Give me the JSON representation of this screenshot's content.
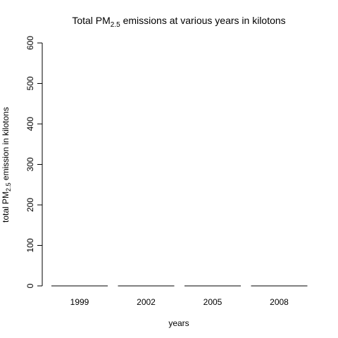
{
  "chart_data": {
    "type": "bar",
    "title": {
      "pre": "Total PM",
      "sub": "2.5",
      "post": " emissions at various years in kilotons"
    },
    "xlabel": "years",
    "ylabel": {
      "pre": "total PM",
      "sub": "2.5",
      "post": " emission in kilotons"
    },
    "categories": [
      "1999",
      "2002",
      "2005",
      "2008"
    ],
    "values": [
      0,
      0,
      0,
      0
    ],
    "ylim": [
      0,
      600
    ],
    "yticks": [
      0,
      100,
      200,
      300,
      400,
      500,
      600
    ],
    "grid": false,
    "bar_outline_color": "#000000",
    "bar_fill_color": "#bebebe"
  }
}
